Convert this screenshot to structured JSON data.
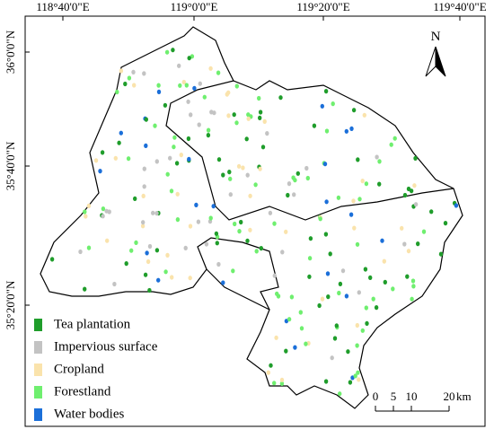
{
  "map": {
    "top_labels": [
      "118°40'0\"E",
      "119°0'0\"E",
      "119°20'0\"E",
      "119°40'0\"E"
    ],
    "left_labels": [
      "36°0'0\"N",
      "35°40'0\"N",
      "35°20'0\"N"
    ],
    "north": "N",
    "scale": {
      "ticks": [
        "0",
        "5",
        "10",
        "20"
      ],
      "unit": "km"
    },
    "legend": [
      {
        "label": "Tea plantation",
        "color": "#1f9d2b"
      },
      {
        "label": "Impervious surface",
        "color": "#c3c3c3"
      },
      {
        "label": "Cropland",
        "color": "#fae3ac"
      },
      {
        "label": "Forestland",
        "color": "#6fef6f"
      },
      {
        "label": "Water bodies",
        "color": "#1b6fd9"
      }
    ]
  }
}
